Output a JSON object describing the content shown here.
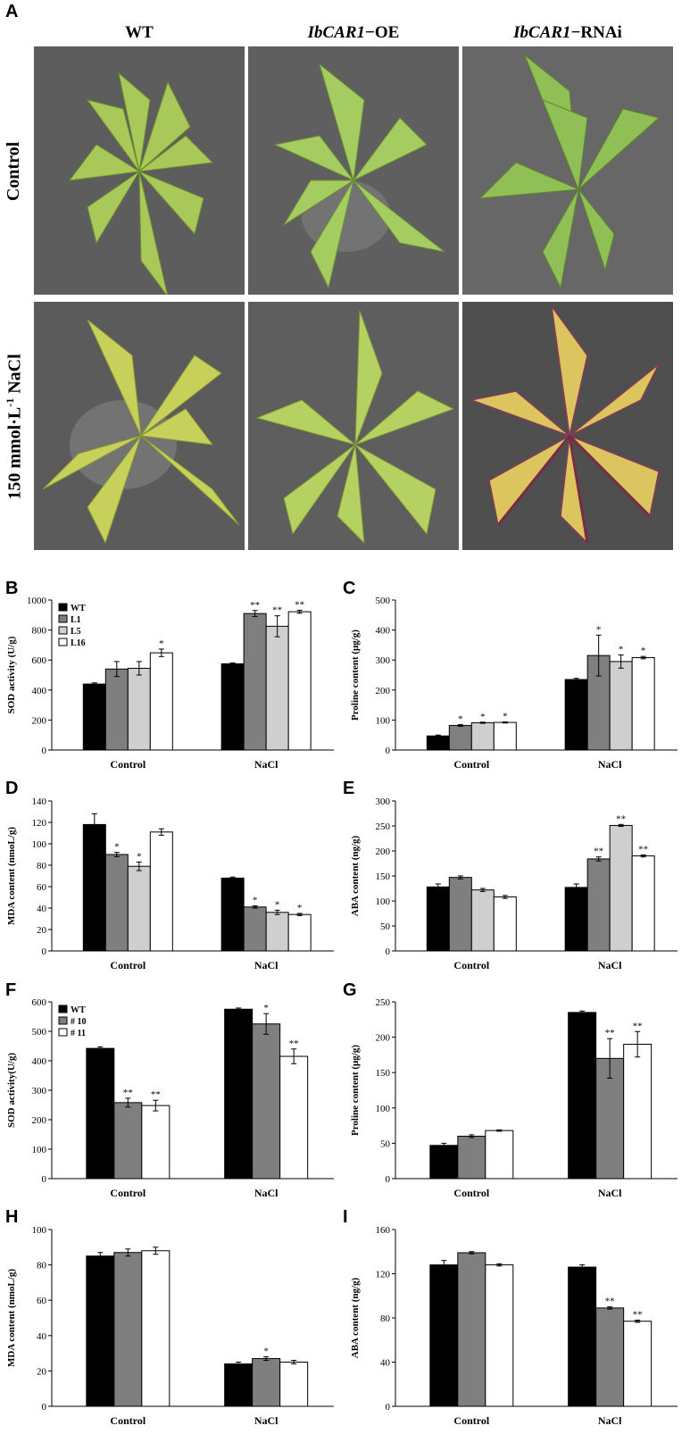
{
  "panel_letters": {
    "A": "A",
    "B": "B",
    "C": "C",
    "D": "D",
    "E": "E",
    "F": "F",
    "G": "G",
    "H": "H",
    "I": "I"
  },
  "photo_grid": {
    "columns": [
      {
        "italic": "",
        "plain": "WT"
      },
      {
        "italic": "IbCAR1",
        "plain": "−OE"
      },
      {
        "italic": "IbCAR1",
        "plain": "−RNAi"
      }
    ],
    "row_control": "Control",
    "row_nacl": "150 mmol·L",
    "row_nacl_sup": "-1",
    "row_nacl_tail": " NaCl"
  },
  "colors": {
    "wt": "#000000",
    "l1": "#7f7f7f",
    "l5": "#cfcfcf",
    "l16": "#ffffff",
    "photo_bg": "#5e5e5e",
    "leaf_healthy": "#9fc65a",
    "leaf_stressed": "#d9c45e",
    "stem": "#7a2a45"
  },
  "chart_data": [
    {
      "id": "B",
      "type": "bar",
      "categories": [
        "Control",
        "NaCl"
      ],
      "ylabel": "SOD activity (U/g)",
      "ylim": [
        0,
        1000
      ],
      "yticks": [
        0,
        200,
        400,
        600,
        800,
        1000
      ],
      "legend": [
        "WT",
        "L1",
        "L5",
        "L16"
      ],
      "legend_position": "top-left",
      "series": [
        {
          "name": "WT",
          "values": [
            440,
            575
          ],
          "err": [
            8,
            6
          ],
          "sig": [
            "",
            ""
          ]
        },
        {
          "name": "L1",
          "values": [
            540,
            910
          ],
          "err": [
            50,
            20
          ],
          "sig": [
            "",
            "**"
          ]
        },
        {
          "name": "L5",
          "values": [
            545,
            825
          ],
          "err": [
            45,
            70
          ],
          "sig": [
            "",
            "**"
          ]
        },
        {
          "name": "L16",
          "values": [
            648,
            922
          ],
          "err": [
            25,
            10
          ],
          "sig": [
            "*",
            "**"
          ]
        }
      ]
    },
    {
      "id": "C",
      "type": "bar",
      "categories": [
        "Control",
        "NaCl"
      ],
      "ylabel": "Proline content (μg/g)",
      "ylim": [
        0,
        500
      ],
      "yticks": [
        0,
        100,
        200,
        300,
        400,
        500
      ],
      "series": [
        {
          "name": "WT",
          "values": [
            47,
            235
          ],
          "err": [
            3,
            4
          ],
          "sig": [
            "",
            ""
          ]
        },
        {
          "name": "L1",
          "values": [
            82,
            315
          ],
          "err": [
            3,
            68
          ],
          "sig": [
            "*",
            "*"
          ]
        },
        {
          "name": "L5",
          "values": [
            91,
            295
          ],
          "err": [
            2,
            22
          ],
          "sig": [
            "*",
            "*"
          ]
        },
        {
          "name": "L16",
          "values": [
            92,
            308
          ],
          "err": [
            2,
            4
          ],
          "sig": [
            "*",
            "*"
          ]
        }
      ]
    },
    {
      "id": "D",
      "type": "bar",
      "categories": [
        "Control",
        "NaCl"
      ],
      "ylabel": "MDA content (nmoL/g)",
      "ylim": [
        0,
        140
      ],
      "yticks": [
        0,
        20,
        40,
        60,
        80,
        100,
        120,
        140
      ],
      "series": [
        {
          "name": "WT",
          "values": [
            118,
            68
          ],
          "err": [
            10,
            1
          ],
          "sig": [
            "",
            ""
          ]
        },
        {
          "name": "L1",
          "values": [
            90,
            41
          ],
          "err": [
            2,
            1
          ],
          "sig": [
            "*",
            "*"
          ]
        },
        {
          "name": "L5",
          "values": [
            79,
            36
          ],
          "err": [
            4,
            2
          ],
          "sig": [
            "*",
            "*"
          ]
        },
        {
          "name": "L16",
          "values": [
            111,
            34
          ],
          "err": [
            3,
            1
          ],
          "sig": [
            "",
            "*"
          ]
        }
      ]
    },
    {
      "id": "E",
      "type": "bar",
      "categories": [
        "Control",
        "NaCl"
      ],
      "ylabel": "ABA content (ng/g)",
      "ylim": [
        0,
        300
      ],
      "yticks": [
        0,
        50,
        100,
        150,
        200,
        250,
        300
      ],
      "series": [
        {
          "name": "WT",
          "values": [
            128,
            127
          ],
          "err": [
            6,
            7
          ],
          "sig": [
            "",
            ""
          ]
        },
        {
          "name": "L1",
          "values": [
            147,
            184
          ],
          "err": [
            3,
            4
          ],
          "sig": [
            "",
            "**"
          ]
        },
        {
          "name": "L5",
          "values": [
            122,
            251
          ],
          "err": [
            3,
            2
          ],
          "sig": [
            "",
            "**"
          ]
        },
        {
          "name": "L16",
          "values": [
            108,
            190
          ],
          "err": [
            3,
            2
          ],
          "sig": [
            "",
            "**"
          ]
        }
      ]
    },
    {
      "id": "F",
      "type": "bar",
      "categories": [
        "Control",
        "NaCl"
      ],
      "ylabel": "SOD activity(U/g)",
      "ylim": [
        0,
        600
      ],
      "yticks": [
        0,
        100,
        200,
        300,
        400,
        500,
        600
      ],
      "legend": [
        "WT",
        "# 10",
        "# 11"
      ],
      "legend_position": "top-left",
      "series": [
        {
          "name": "WT",
          "values": [
            442,
            575
          ],
          "err": [
            5,
            4
          ],
          "sig": [
            "",
            ""
          ]
        },
        {
          "name": "# 10",
          "values": [
            258,
            525
          ],
          "err": [
            15,
            35
          ],
          "sig": [
            "**",
            "*"
          ]
        },
        {
          "name": "# 11",
          "values": [
            248,
            415
          ],
          "err": [
            18,
            25
          ],
          "sig": [
            "**",
            "**"
          ]
        }
      ]
    },
    {
      "id": "G",
      "type": "bar",
      "categories": [
        "Control",
        "NaCl"
      ],
      "ylabel": "Proline content (μg/g)",
      "ylim": [
        0,
        250
      ],
      "yticks": [
        0,
        50,
        100,
        150,
        200,
        250
      ],
      "series": [
        {
          "name": "WT",
          "values": [
            47,
            235
          ],
          "err": [
            3,
            2
          ],
          "sig": [
            "",
            ""
          ]
        },
        {
          "name": "# 10",
          "values": [
            60,
            170
          ],
          "err": [
            2,
            28
          ],
          "sig": [
            "",
            "**"
          ]
        },
        {
          "name": "# 11",
          "values": [
            68,
            190
          ],
          "err": [
            1,
            18
          ],
          "sig": [
            "",
            "**"
          ]
        }
      ]
    },
    {
      "id": "H",
      "type": "bar",
      "categories": [
        "Control",
        "NaCl"
      ],
      "ylabel": "MDA content (nmoL/g)",
      "ylim": [
        0,
        100
      ],
      "yticks": [
        0,
        20,
        40,
        60,
        80,
        100
      ],
      "series": [
        {
          "name": "WT",
          "values": [
            85,
            24
          ],
          "err": [
            2,
            1
          ],
          "sig": [
            "",
            ""
          ]
        },
        {
          "name": "# 10",
          "values": [
            87,
            27
          ],
          "err": [
            2,
            1
          ],
          "sig": [
            "",
            "*"
          ]
        },
        {
          "name": "# 11",
          "values": [
            88,
            25
          ],
          "err": [
            2,
            1
          ],
          "sig": [
            "",
            ""
          ]
        }
      ]
    },
    {
      "id": "I",
      "type": "bar",
      "categories": [
        "Control",
        "NaCl"
      ],
      "ylabel": "ABA content (ng/g)",
      "ylim": [
        0,
        160
      ],
      "yticks": [
        0,
        40,
        80,
        120,
        160
      ],
      "series": [
        {
          "name": "WT",
          "values": [
            128,
            126
          ],
          "err": [
            4,
            2
          ],
          "sig": [
            "",
            ""
          ]
        },
        {
          "name": "# 10",
          "values": [
            139,
            89
          ],
          "err": [
            1,
            1
          ],
          "sig": [
            "",
            "**"
          ]
        },
        {
          "name": "# 11",
          "values": [
            128,
            77
          ],
          "err": [
            1,
            1
          ],
          "sig": [
            "",
            "**"
          ]
        }
      ]
    }
  ]
}
